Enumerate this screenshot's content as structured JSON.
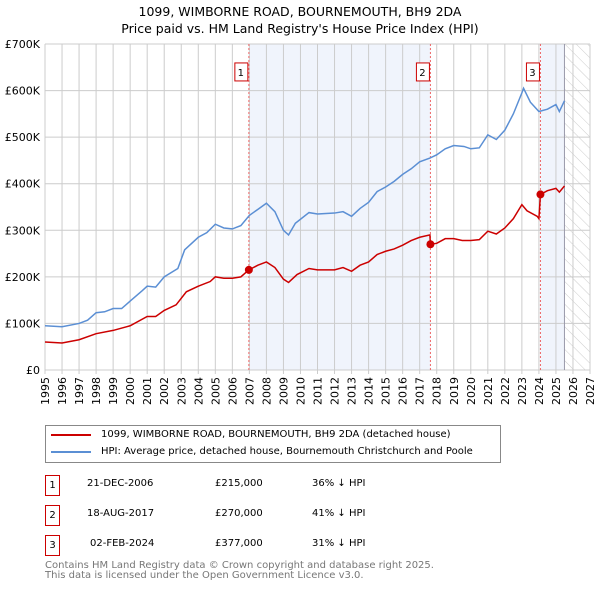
{
  "title": "1099, WIMBORNE ROAD, BOURNEMOUTH, BH9 2DA",
  "subtitle": "Price paid vs. HM Land Registry's House Price Index (HPI)",
  "chart_data": {
    "type": "line",
    "xlim": [
      1995,
      2027
    ],
    "ylim": [
      0,
      700000
    ],
    "x_ticks": [
      "1995",
      "1996",
      "1997",
      "1998",
      "1999",
      "2000",
      "2001",
      "2002",
      "2003",
      "2004",
      "2005",
      "2006",
      "2007",
      "2008",
      "2009",
      "2010",
      "2011",
      "2012",
      "2013",
      "2014",
      "2015",
      "2016",
      "2017",
      "2018",
      "2019",
      "2020",
      "2021",
      "2022",
      "2023",
      "2024",
      "2025",
      "2026",
      "2027"
    ],
    "y_ticks": [
      {
        "v": 0,
        "label": "£0"
      },
      {
        "v": 100000,
        "label": "£100K"
      },
      {
        "v": 200000,
        "label": "£200K"
      },
      {
        "v": 300000,
        "label": "£300K"
      },
      {
        "v": 400000,
        "label": "£400K"
      },
      {
        "v": 500000,
        "label": "£500K"
      },
      {
        "v": 600000,
        "label": "£600K"
      },
      {
        "v": 700000,
        "label": "£700K"
      }
    ],
    "forecast_from": 2025.5,
    "series": [
      {
        "name": "1099, WIMBORNE ROAD, BOURNEMOUTH, BH9 2DA (detached house)",
        "color": "#cc0000",
        "points": [
          [
            1995,
            60000
          ],
          [
            1996,
            58000
          ],
          [
            1997,
            65000
          ],
          [
            1998,
            78000
          ],
          [
            1999,
            85000
          ],
          [
            2000,
            95000
          ],
          [
            2001,
            115000
          ],
          [
            2001.5,
            115000
          ],
          [
            2002,
            128000
          ],
          [
            2002.7,
            140000
          ],
          [
            2003.3,
            168000
          ],
          [
            2004,
            180000
          ],
          [
            2004.7,
            190000
          ],
          [
            2005,
            200000
          ],
          [
            2005.5,
            197000
          ],
          [
            2006,
            197000
          ],
          [
            2006.5,
            200000
          ],
          [
            2006.97,
            215000
          ],
          [
            2007.5,
            225000
          ],
          [
            2008,
            232000
          ],
          [
            2008.5,
            220000
          ],
          [
            2009,
            195000
          ],
          [
            2009.3,
            188000
          ],
          [
            2009.8,
            205000
          ],
          [
            2010.5,
            218000
          ],
          [
            2011,
            215000
          ],
          [
            2012,
            215000
          ],
          [
            2012.5,
            220000
          ],
          [
            2013,
            212000
          ],
          [
            2013.5,
            225000
          ],
          [
            2014,
            232000
          ],
          [
            2014.5,
            248000
          ],
          [
            2015,
            255000
          ],
          [
            2015.5,
            260000
          ],
          [
            2016,
            268000
          ],
          [
            2016.5,
            278000
          ],
          [
            2017,
            285000
          ],
          [
            2017.6,
            290000
          ],
          [
            2017.63,
            270000
          ],
          [
            2018,
            272000
          ],
          [
            2018.5,
            282000
          ],
          [
            2019,
            282000
          ],
          [
            2019.5,
            278000
          ],
          [
            2020,
            278000
          ],
          [
            2020.5,
            280000
          ],
          [
            2021,
            298000
          ],
          [
            2021.5,
            292000
          ],
          [
            2022,
            305000
          ],
          [
            2022.5,
            325000
          ],
          [
            2023,
            355000
          ],
          [
            2023.3,
            342000
          ],
          [
            2023.9,
            330000
          ],
          [
            2024.0,
            325000
          ],
          [
            2024.09,
            377000
          ],
          [
            2024.5,
            385000
          ],
          [
            2025,
            390000
          ],
          [
            2025.2,
            382000
          ],
          [
            2025.5,
            395000
          ]
        ]
      },
      {
        "name": "HPI: Average price, detached house, Bournemouth Christchurch and Poole",
        "color": "#5b8fd4",
        "points": [
          [
            1995,
            95000
          ],
          [
            1996,
            93000
          ],
          [
            1997,
            100000
          ],
          [
            1997.5,
            107000
          ],
          [
            1998,
            123000
          ],
          [
            1998.5,
            125000
          ],
          [
            1999,
            132000
          ],
          [
            1999.5,
            132000
          ],
          [
            2000,
            148000
          ],
          [
            2000.7,
            170000
          ],
          [
            2001,
            180000
          ],
          [
            2001.5,
            178000
          ],
          [
            2002,
            200000
          ],
          [
            2002.8,
            218000
          ],
          [
            2003.2,
            258000
          ],
          [
            2004,
            285000
          ],
          [
            2004.5,
            295000
          ],
          [
            2005,
            313000
          ],
          [
            2005.5,
            305000
          ],
          [
            2006,
            303000
          ],
          [
            2006.5,
            310000
          ],
          [
            2007,
            332000
          ],
          [
            2007.5,
            345000
          ],
          [
            2008,
            358000
          ],
          [
            2008.5,
            340000
          ],
          [
            2009,
            300000
          ],
          [
            2009.3,
            290000
          ],
          [
            2009.7,
            315000
          ],
          [
            2010.5,
            338000
          ],
          [
            2011,
            335000
          ],
          [
            2012,
            337000
          ],
          [
            2012.5,
            340000
          ],
          [
            2013,
            330000
          ],
          [
            2013.5,
            347000
          ],
          [
            2014,
            360000
          ],
          [
            2014.5,
            383000
          ],
          [
            2015,
            393000
          ],
          [
            2015.5,
            405000
          ],
          [
            2016,
            420000
          ],
          [
            2016.5,
            432000
          ],
          [
            2017,
            447000
          ],
          [
            2017.6,
            455000
          ],
          [
            2018,
            462000
          ],
          [
            2018.5,
            475000
          ],
          [
            2019,
            482000
          ],
          [
            2019.6,
            480000
          ],
          [
            2020,
            475000
          ],
          [
            2020.5,
            477000
          ],
          [
            2021,
            505000
          ],
          [
            2021.5,
            495000
          ],
          [
            2022,
            515000
          ],
          [
            2022.5,
            550000
          ],
          [
            2023,
            595000
          ],
          [
            2023.1,
            605000
          ],
          [
            2023.5,
            575000
          ],
          [
            2024,
            555000
          ],
          [
            2024.5,
            560000
          ],
          [
            2025,
            570000
          ],
          [
            2025.2,
            555000
          ],
          [
            2025.5,
            578000
          ]
        ]
      }
    ],
    "sales": [
      {
        "label": "1",
        "x": 2006.97,
        "y": 215000
      },
      {
        "label": "2",
        "x": 2017.63,
        "y": 270000
      },
      {
        "label": "3",
        "x": 2024.09,
        "y": 377000
      }
    ]
  },
  "legend": {
    "red": "1099, WIMBORNE ROAD, BOURNEMOUTH, BH9 2DA (detached house)",
    "blue": "HPI: Average price, detached house, Bournemouth Christchurch and Poole"
  },
  "table": [
    {
      "num": "1",
      "date": "21-DEC-2006",
      "price": "£215,000",
      "hpi": "36% ↓ HPI"
    },
    {
      "num": "2",
      "date": "18-AUG-2017",
      "price": "£270,000",
      "hpi": "41% ↓ HPI"
    },
    {
      "num": "3",
      "date": "02-FEB-2024",
      "price": "£377,000",
      "hpi": "31% ↓ HPI"
    }
  ],
  "footer": {
    "line1": "Contains HM Land Registry data © Crown copyright and database right 2025.",
    "line2": "This data is licensed under the Open Government Licence v3.0."
  }
}
